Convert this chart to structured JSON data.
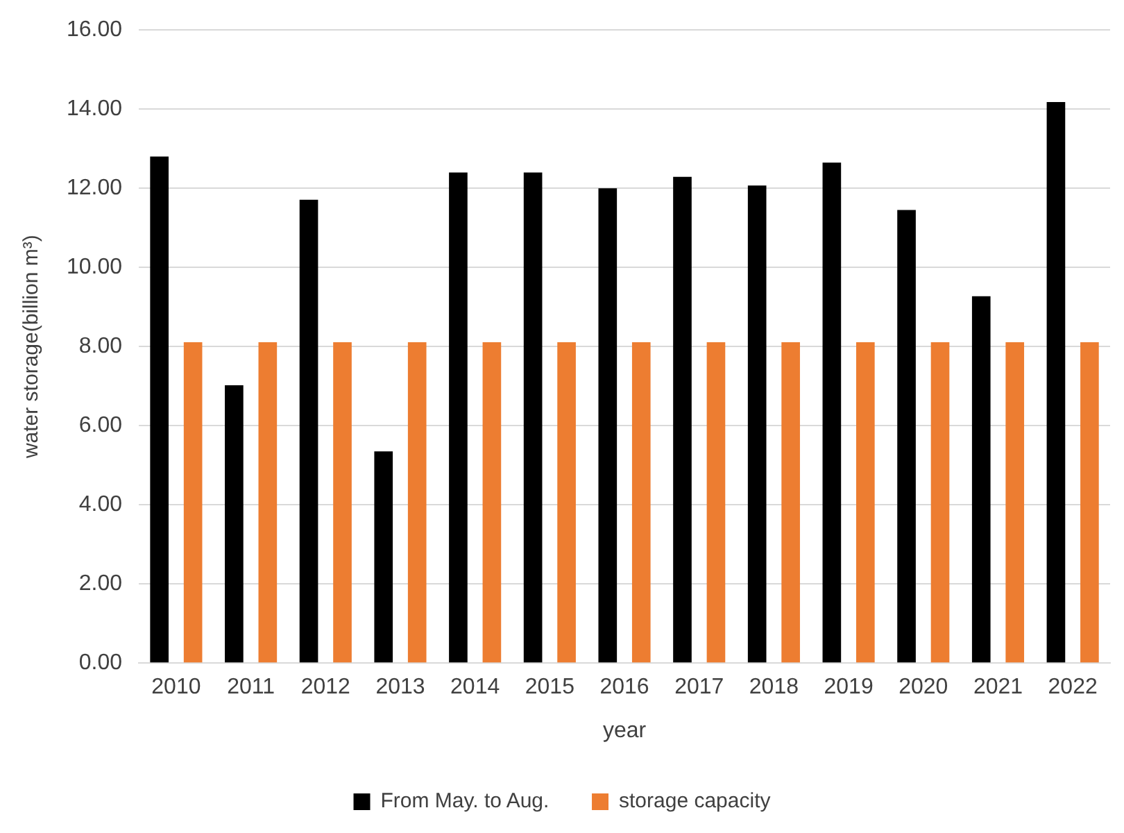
{
  "chart_data": {
    "type": "bar",
    "xlabel": "year",
    "ylabel": "water storage(billion m³)",
    "categories": [
      "2010",
      "2011",
      "2012",
      "2013",
      "2014",
      "2015",
      "2016",
      "2017",
      "2018",
      "2019",
      "2020",
      "2021",
      "2022"
    ],
    "series": [
      {
        "name": "From May. to Aug.",
        "color": "#000000",
        "values": [
          12.8,
          7.02,
          11.71,
          5.35,
          12.4,
          12.4,
          12.0,
          12.29,
          12.07,
          12.65,
          11.45,
          9.27,
          14.18
        ]
      },
      {
        "name": "storage capacity",
        "color": "#ed7d31",
        "values": [
          8.11,
          8.11,
          8.11,
          8.11,
          8.11,
          8.11,
          8.11,
          8.11,
          8.11,
          8.11,
          8.11,
          8.11,
          8.11
        ]
      }
    ],
    "ylim": [
      0,
      16
    ],
    "yticks": [
      {
        "value": 0,
        "label": "0.00"
      },
      {
        "value": 2,
        "label": "2.00"
      },
      {
        "value": 4,
        "label": "4.00"
      },
      {
        "value": 6,
        "label": "6.00"
      },
      {
        "value": 8,
        "label": "8.00"
      },
      {
        "value": 10,
        "label": "10.00"
      },
      {
        "value": 12,
        "label": "12.00"
      },
      {
        "value": 14,
        "label": "14.00"
      },
      {
        "value": 16,
        "label": "16.00"
      }
    ],
    "grid": "y",
    "legend": "bottom"
  }
}
